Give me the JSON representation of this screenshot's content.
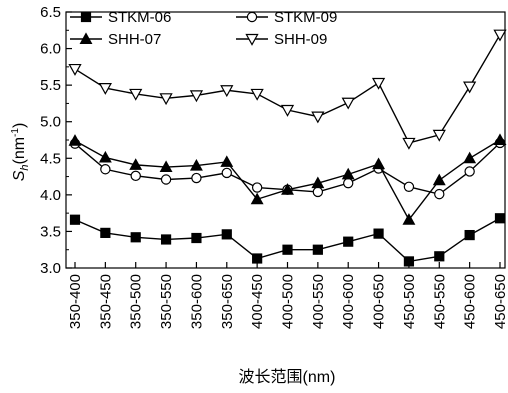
{
  "chart_data": {
    "type": "line",
    "xlabel": "波长范围(nm)",
    "ylabel": {
      "main": "S",
      "sub": "h",
      "unit_pre": "(nm",
      "unit_sup": "-1",
      "unit_post": ")"
    },
    "ylim": [
      3.0,
      6.5
    ],
    "yticks": [
      "3.0",
      "3.5",
      "4.0",
      "4.5",
      "5.0",
      "5.5",
      "6.0",
      "6.5"
    ],
    "categories": [
      "350-400",
      "350-450",
      "350-500",
      "350-550",
      "350-600",
      "350-650",
      "400-450",
      "400-500",
      "400-550",
      "400-600",
      "400-650",
      "450-500",
      "450-550",
      "450-600",
      "450-650"
    ],
    "grid": false,
    "legend_position": "top-left, two columns",
    "series": [
      {
        "name": "STKM-06",
        "marker": "filled-square",
        "values": [
          3.66,
          3.48,
          3.42,
          3.39,
          3.41,
          3.46,
          3.13,
          3.25,
          3.25,
          3.36,
          3.47,
          3.09,
          3.16,
          3.45,
          3.68
        ]
      },
      {
        "name": "STKM-09",
        "marker": "open-circle",
        "values": [
          4.7,
          4.35,
          4.26,
          4.21,
          4.23,
          4.3,
          4.1,
          4.07,
          4.04,
          4.16,
          4.36,
          4.11,
          4.01,
          4.32,
          4.71
        ]
      },
      {
        "name": "SHH-07",
        "marker": "filled-triangle-up",
        "values": [
          4.74,
          4.51,
          4.41,
          4.38,
          4.4,
          4.45,
          3.94,
          4.07,
          4.16,
          4.28,
          4.42,
          3.66,
          4.2,
          4.5,
          4.75
        ]
      },
      {
        "name": "SHH-09",
        "marker": "open-triangle-down",
        "values": [
          5.72,
          5.46,
          5.38,
          5.32,
          5.36,
          5.43,
          5.38,
          5.16,
          5.07,
          5.26,
          5.53,
          4.71,
          4.82,
          5.48,
          6.19
        ]
      }
    ],
    "colors": {
      "line": "#000000",
      "background": "#ffffff"
    }
  }
}
